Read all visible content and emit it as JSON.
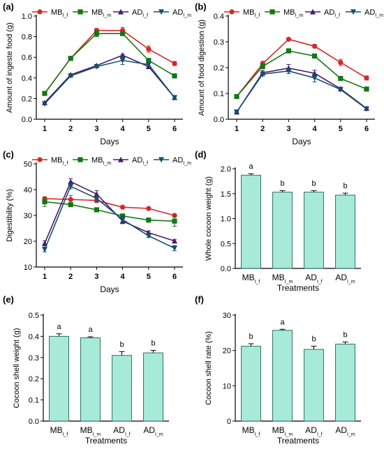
{
  "colors": {
    "MB_f": "#d62728",
    "MB_m": "#137713",
    "AD_f": "#4b1a6e",
    "AD_m": "#14506b",
    "bar_fill": "#a8ead8",
    "bar_stroke": "#2f6f66"
  },
  "chart_data": [
    {
      "panel_label": "(a)",
      "type": "line",
      "xlabel": "Days",
      "ylabel": "Amount of ingeste food (g)",
      "x": [
        1,
        2,
        3,
        4,
        5,
        6
      ],
      "ylim": [
        0,
        1.0
      ],
      "yticks": [
        0.0,
        0.2,
        0.4,
        0.6,
        0.8,
        1.0
      ],
      "ytick_labels": [
        "0.0",
        "0.2",
        "0.4",
        "0.6",
        "0.8",
        "1.0"
      ],
      "legend": "top",
      "series": [
        {
          "key": "MB_f",
          "base": "MB",
          "sub": "I_f",
          "marker": "circle",
          "values": [
            0.25,
            0.59,
            0.86,
            0.86,
            0.68,
            0.54
          ],
          "errors": [
            0.01,
            0.01,
            0.02,
            0.03,
            0.03,
            0.02
          ]
        },
        {
          "key": "MB_m",
          "base": "MB",
          "sub": "I_m",
          "marker": "square",
          "values": [
            0.25,
            0.59,
            0.83,
            0.83,
            0.57,
            0.42
          ],
          "errors": [
            0.01,
            0.01,
            0.03,
            0.01,
            0.02,
            0.01
          ]
        },
        {
          "key": "AD_f",
          "base": "AD",
          "sub": "I_f",
          "marker": "triangle-up",
          "values": [
            0.16,
            0.43,
            0.52,
            0.62,
            0.51,
            0.21
          ],
          "errors": [
            0.01,
            0.01,
            0.01,
            0.01,
            0.01,
            0.01
          ]
        },
        {
          "key": "AD_m",
          "base": "AD",
          "sub": "I_m",
          "marker": "triangle-down",
          "values": [
            0.15,
            0.42,
            0.51,
            0.57,
            0.53,
            0.21
          ],
          "errors": [
            0.01,
            0.01,
            0.01,
            0.04,
            0.02,
            0.01
          ]
        }
      ]
    },
    {
      "panel_label": "(b)",
      "type": "line",
      "xlabel": "Days",
      "ylabel": "Amount of food digestion (g)",
      "x": [
        1,
        2,
        3,
        4,
        5,
        6
      ],
      "ylim": [
        0,
        0.4
      ],
      "yticks": [
        0.0,
        0.1,
        0.2,
        0.3,
        0.4
      ],
      "ytick_labels": [
        "0.0",
        "0.1",
        "0.2",
        "0.3",
        "0.4"
      ],
      "legend": "top",
      "series": [
        {
          "key": "MB_f",
          "base": "MB",
          "sub": "I_f",
          "marker": "circle",
          "values": [
            0.088,
            0.215,
            0.31,
            0.283,
            0.22,
            0.16
          ],
          "errors": [
            0.004,
            0.01,
            0.004,
            0.007,
            0.012,
            0.008
          ]
        },
        {
          "key": "MB_m",
          "base": "MB",
          "sub": "I_m",
          "marker": "square",
          "values": [
            0.088,
            0.205,
            0.265,
            0.245,
            0.158,
            0.117
          ],
          "errors": [
            0.004,
            0.01,
            0.005,
            0.005,
            0.006,
            0.004
          ]
        },
        {
          "key": "AD_f",
          "base": "AD",
          "sub": "I_f",
          "marker": "triangle-up",
          "values": [
            0.028,
            0.18,
            0.198,
            0.178,
            0.118,
            0.042
          ],
          "errors": [
            0.002,
            0.008,
            0.014,
            0.012,
            0.006,
            0.004
          ]
        },
        {
          "key": "AD_m",
          "base": "AD",
          "sub": "I_m",
          "marker": "triangle-down",
          "values": [
            0.028,
            0.175,
            0.187,
            0.16,
            0.115,
            0.04
          ],
          "errors": [
            0.002,
            0.008,
            0.01,
            0.015,
            0.005,
            0.003
          ]
        }
      ]
    },
    {
      "panel_label": "(c)",
      "type": "line",
      "xlabel": "Days",
      "ylabel": "Digestibility (%)",
      "x": [
        1,
        2,
        3,
        4,
        5,
        6
      ],
      "ylim": [
        10,
        50
      ],
      "yticks": [
        10,
        20,
        30,
        40,
        50
      ],
      "ytick_labels": [
        "10",
        "20",
        "30",
        "40",
        "50"
      ],
      "legend": "top",
      "series": [
        {
          "key": "MB_f",
          "base": "MB",
          "sub": "I_f",
          "marker": "circle",
          "values": [
            36.5,
            36.2,
            35.8,
            33.2,
            32.7,
            30.0
          ],
          "errors": [
            0.6,
            1.5,
            0.8,
            0.4,
            0.5,
            0.6
          ]
        },
        {
          "key": "MB_m",
          "base": "MB",
          "sub": "I_m",
          "marker": "square",
          "values": [
            35.3,
            34.2,
            32.2,
            29.8,
            28.2,
            27.8
          ],
          "errors": [
            1.8,
            0.6,
            0.6,
            0.6,
            0.5,
            2.0
          ]
        },
        {
          "key": "AD_f",
          "base": "AD",
          "sub": "I_f",
          "marker": "triangle-up",
          "values": [
            19.2,
            43.1,
            38.3,
            27.8,
            23.3,
            20.1
          ],
          "errors": [
            1.0,
            1.2,
            1.3,
            1.0,
            0.7,
            0.5
          ]
        },
        {
          "key": "AD_m",
          "base": "AD",
          "sub": "I_m",
          "marker": "triangle-down",
          "values": [
            16.8,
            41.3,
            36.6,
            28.4,
            22.1,
            17.3
          ],
          "errors": [
            0.9,
            1.0,
            1.2,
            1.4,
            0.6,
            1.0
          ]
        }
      ]
    },
    {
      "panel_label": "(d)",
      "type": "bar",
      "xlabel": "Treatments",
      "ylabel": "Whole cocoon weight (g)",
      "ylim": [
        0,
        2.0
      ],
      "yticks": [
        0.0,
        0.5,
        1.0,
        1.5,
        2.0
      ],
      "ytick_labels": [
        "0.0",
        "0.5",
        "1.0",
        "1.5",
        "2.0"
      ],
      "categories": [
        {
          "base": "MB",
          "sub": "I_f"
        },
        {
          "base": "MB",
          "sub": "I_m"
        },
        {
          "base": "AD",
          "sub": "I_f"
        },
        {
          "base": "AD",
          "sub": "I_m"
        }
      ],
      "values": [
        1.87,
        1.53,
        1.53,
        1.47
      ],
      "errors": [
        0.03,
        0.03,
        0.03,
        0.04
      ],
      "letters": [
        "a",
        "b",
        "b",
        "b"
      ]
    },
    {
      "panel_label": "(e)",
      "type": "bar",
      "xlabel": "Treatments",
      "ylabel": "Cocoon shell weight (g)",
      "ylim": [
        0,
        0.5
      ],
      "yticks": [
        0.0,
        0.1,
        0.2,
        0.3,
        0.4,
        0.5
      ],
      "ytick_labels": [
        "0.0",
        "0.1",
        "0.2",
        "0.3",
        "0.4",
        "0.5"
      ],
      "categories": [
        {
          "base": "MB",
          "sub": "I_f"
        },
        {
          "base": "MB",
          "sub": "I_m"
        },
        {
          "base": "AD",
          "sub": "I_f"
        },
        {
          "base": "AD",
          "sub": "I_m"
        }
      ],
      "values": [
        0.4,
        0.393,
        0.31,
        0.322
      ],
      "errors": [
        0.012,
        0.005,
        0.018,
        0.012
      ],
      "letters": [
        "a",
        "a",
        "b",
        "b"
      ]
    },
    {
      "panel_label": "(f)",
      "type": "bar",
      "xlabel": "Treatments",
      "ylabel": "Cocoon shell rate (%)",
      "ylim": [
        0,
        30
      ],
      "yticks": [
        0,
        10,
        20,
        30
      ],
      "ytick_labels": [
        "0",
        "10",
        "20",
        "30"
      ],
      "categories": [
        {
          "base": "MB",
          "sub": "I_f"
        },
        {
          "base": "MB",
          "sub": "I_m"
        },
        {
          "base": "AD",
          "sub": "I_f"
        },
        {
          "base": "AD",
          "sub": "I_m"
        }
      ],
      "values": [
        21.2,
        25.7,
        20.3,
        21.8
      ],
      "errors": [
        0.7,
        0.3,
        0.9,
        0.6
      ],
      "letters": [
        "b",
        "a",
        "b",
        "b"
      ]
    }
  ]
}
